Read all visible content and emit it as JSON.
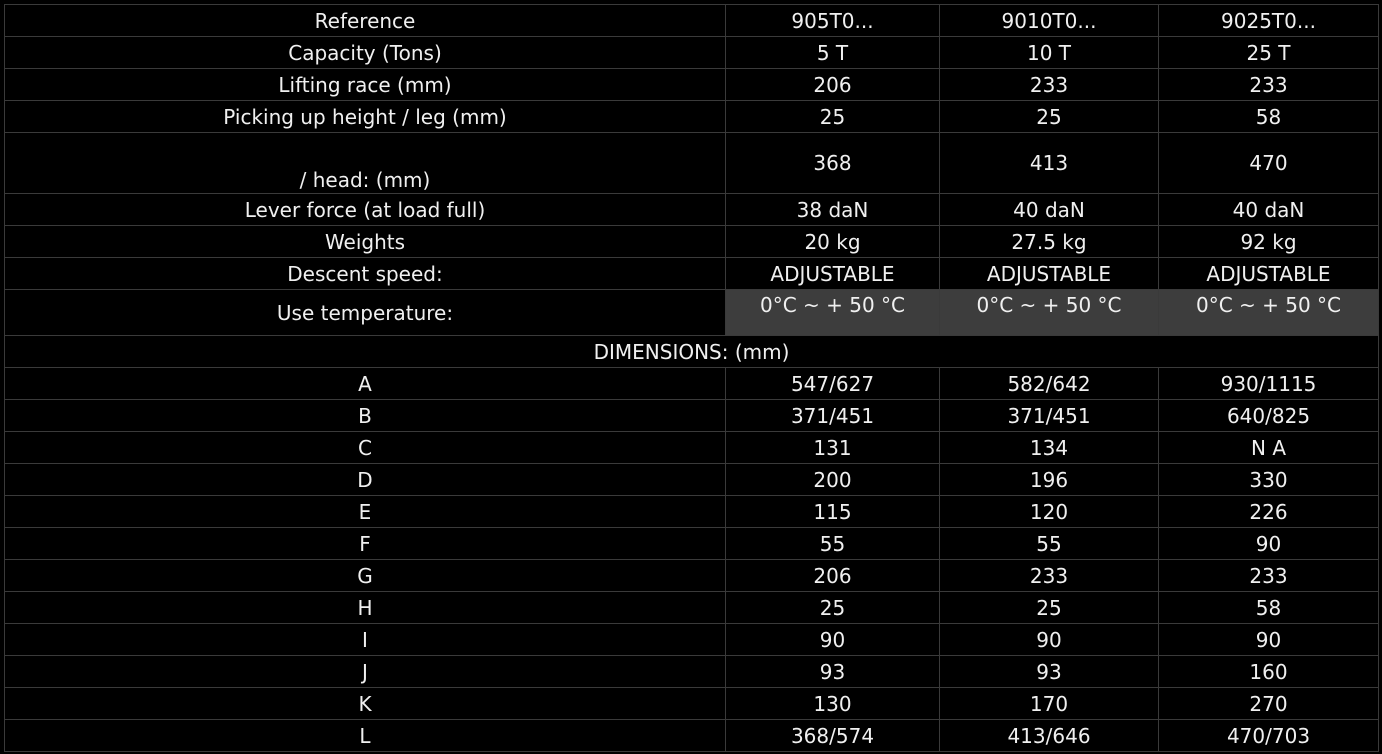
{
  "spec_rows": [
    {
      "label": "Reference",
      "values": [
        "905T0...",
        "9010T0...",
        "9025T0..."
      ]
    },
    {
      "label": "Capacity (Tons)",
      "values": [
        "5 T",
        "10 T",
        "25 T"
      ]
    },
    {
      "label": "Lifting race (mm)",
      "values": [
        "206",
        "233",
        "233"
      ]
    },
    {
      "label": "Picking up height / leg (mm)",
      "values": [
        "25",
        "25",
        "58"
      ]
    },
    {
      "label": "/ head: (mm)",
      "values": [
        "368",
        "413",
        "470"
      ]
    },
    {
      "label": "Lever force (at load full)",
      "values": [
        "38 daN",
        "40 daN",
        "40 daN"
      ]
    },
    {
      "label": "Weights",
      "values": [
        "20 kg",
        "27.5 kg",
        "92 kg"
      ]
    },
    {
      "label": "Descent speed:",
      "values": [
        "ADJUSTABLE",
        "ADJUSTABLE",
        "ADJUSTABLE"
      ]
    },
    {
      "label": "Use temperature:",
      "values": [
        "0°C ~ + 50 °C",
        "0°C ~ + 50 °C",
        "0°C ~ + 50 °C"
      ]
    }
  ],
  "dimensions_heading": "DIMENSIONS: (mm)",
  "dimension_rows": [
    {
      "label": "A",
      "values": [
        "547/627",
        "582/642",
        "930/1115"
      ]
    },
    {
      "label": "B",
      "values": [
        "371/451",
        "371/451",
        "640/825"
      ]
    },
    {
      "label": "C",
      "values": [
        "131",
        "134",
        "N A"
      ]
    },
    {
      "label": "D",
      "values": [
        "200",
        "196",
        "330"
      ]
    },
    {
      "label": "E",
      "values": [
        "115",
        "120",
        "226"
      ]
    },
    {
      "label": "F",
      "values": [
        "55",
        "55",
        "90"
      ]
    },
    {
      "label": "G",
      "values": [
        "206",
        "233",
        "233"
      ]
    },
    {
      "label": "H",
      "values": [
        "25",
        "25",
        "58"
      ]
    },
    {
      "label": "I",
      "values": [
        "90",
        "90",
        "90"
      ]
    },
    {
      "label": "J",
      "values": [
        "93",
        "93",
        "160"
      ]
    },
    {
      "label": "K",
      "values": [
        "130",
        "170",
        "270"
      ]
    },
    {
      "label": "L",
      "values": [
        "368/574",
        "413/646",
        "470/703"
      ]
    }
  ],
  "colors": {
    "background": "#000000",
    "text": "#f0f0f0",
    "grid": "#3a3a3a",
    "highlight_cell": "#3d3d3d"
  }
}
